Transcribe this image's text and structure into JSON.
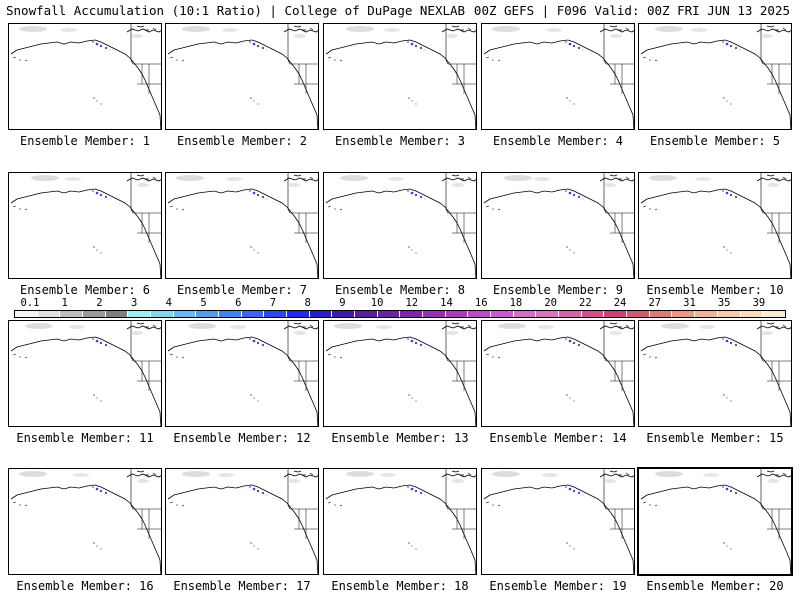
{
  "header": {
    "left": "Snowfall Accumulation (10:1 Ratio) | College of DuPage NEXLAB",
    "right": "00Z GEFS | F096 Valid: 00Z FRI JUN 13 2025"
  },
  "colorbar": {
    "labels": [
      "0.1",
      "1",
      "2",
      "3",
      "4",
      "5",
      "6",
      "7",
      "8",
      "9",
      "10",
      "12",
      "14",
      "16",
      "18",
      "20",
      "22",
      "24",
      "27",
      "31",
      "35",
      "39"
    ],
    "colors": [
      "#f4f4f4",
      "#e0e0e0",
      "#bdbdbd",
      "#9a9a9a",
      "#7f7f7f",
      "#a4ecf2",
      "#8ad4ee",
      "#6fb7ee",
      "#5a99ee",
      "#4a80ee",
      "#3b66ee",
      "#2b48ee",
      "#1f2cee",
      "#2a1ec8",
      "#3d1caa",
      "#55209e",
      "#6a23a3",
      "#7d26ad",
      "#9330b4",
      "#a83cbd",
      "#b84dc3",
      "#c25fc9",
      "#cd73cf",
      "#d476c0",
      "#d563a5",
      "#d24f8e",
      "#c94378",
      "#d25a6e",
      "#de7b74",
      "#e99a80",
      "#f2b693",
      "#f6cba8",
      "#f9dcbd",
      "#fbead3"
    ]
  },
  "panels": [
    {
      "label": "Ensemble Member: 1",
      "selected": false
    },
    {
      "label": "Ensemble Member: 2",
      "selected": false
    },
    {
      "label": "Ensemble Member: 3",
      "selected": false
    },
    {
      "label": "Ensemble Member: 4",
      "selected": false
    },
    {
      "label": "Ensemble Member: 5",
      "selected": false
    },
    {
      "label": "Ensemble Member: 6",
      "selected": false
    },
    {
      "label": "Ensemble Member: 7",
      "selected": false
    },
    {
      "label": "Ensemble Member: 8",
      "selected": false
    },
    {
      "label": "Ensemble Member: 9",
      "selected": false
    },
    {
      "label": "Ensemble Member: 10",
      "selected": false
    },
    {
      "label": "Ensemble Member: 11",
      "selected": false
    },
    {
      "label": "Ensemble Member: 12",
      "selected": false
    },
    {
      "label": "Ensemble Member: 13",
      "selected": false
    },
    {
      "label": "Ensemble Member: 14",
      "selected": false
    },
    {
      "label": "Ensemble Member: 15",
      "selected": false
    },
    {
      "label": "Ensemble Member: 16",
      "selected": false
    },
    {
      "label": "Ensemble Member: 17",
      "selected": false
    },
    {
      "label": "Ensemble Member: 18",
      "selected": false
    },
    {
      "label": "Ensemble Member: 19",
      "selected": false
    },
    {
      "label": "Ensemble Member: 20",
      "selected": true
    }
  ]
}
